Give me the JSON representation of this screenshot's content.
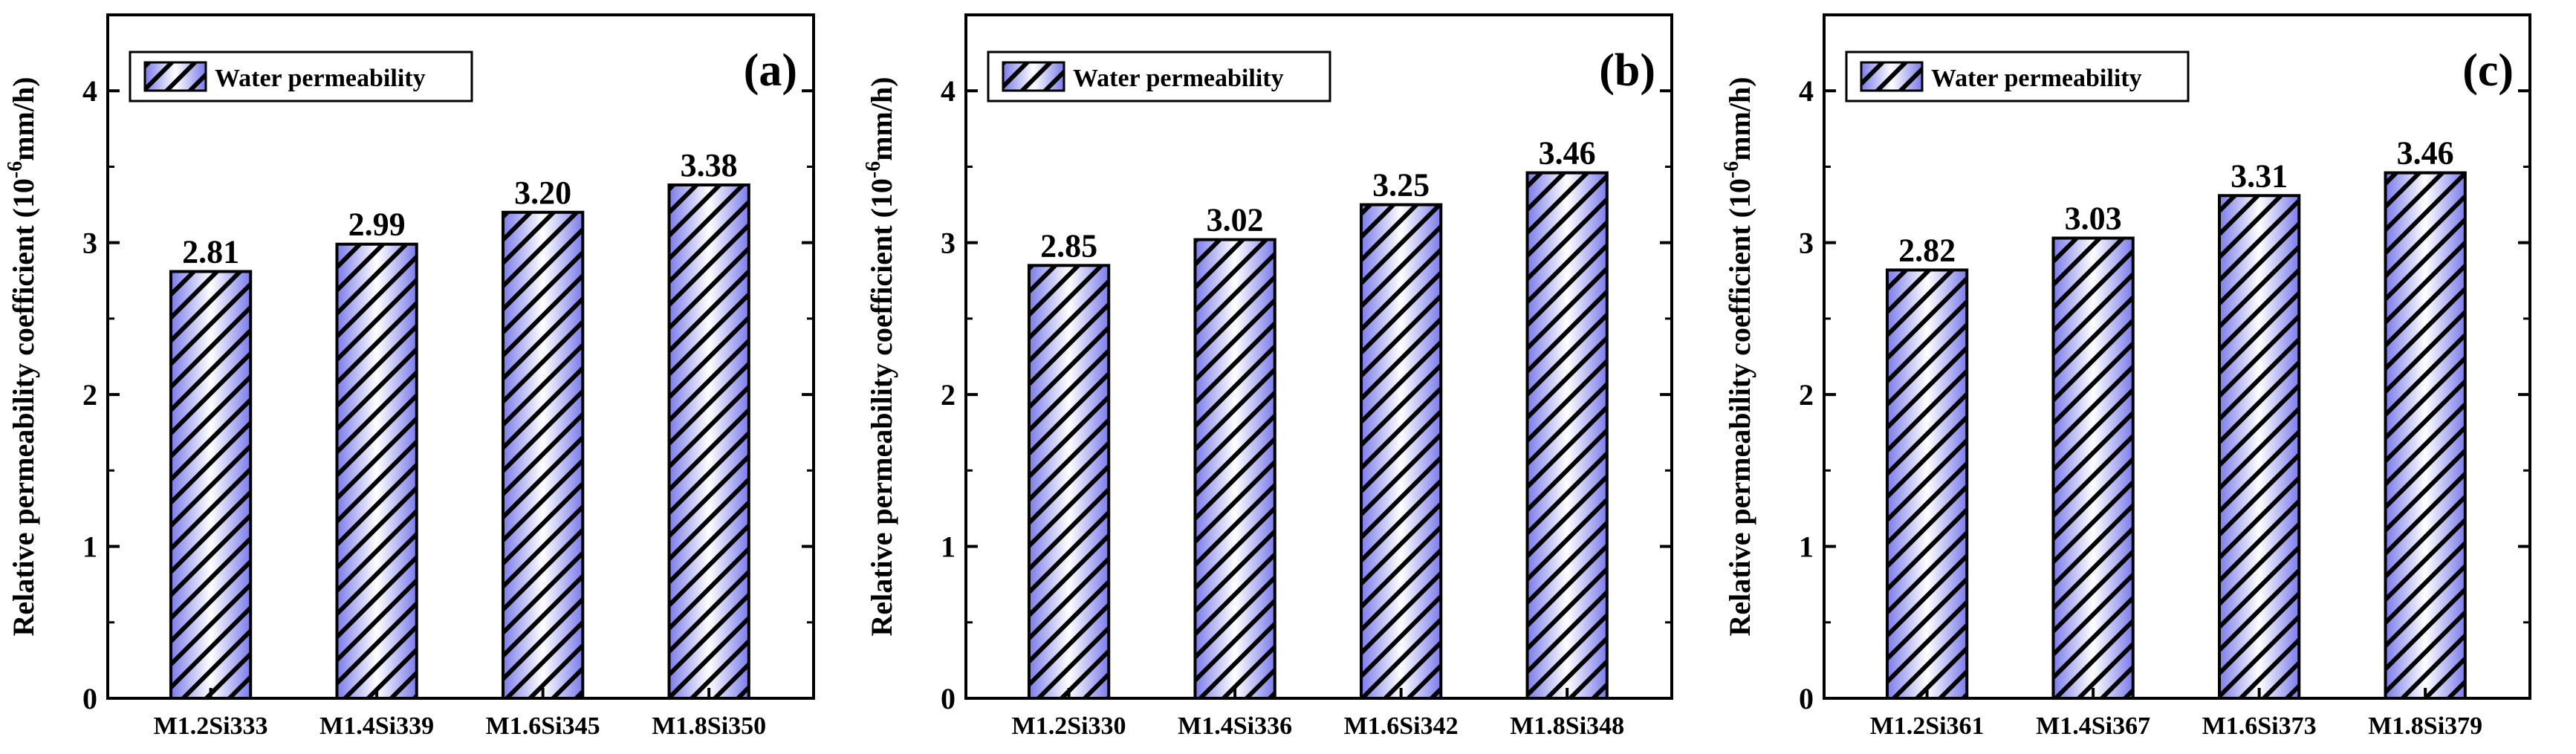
{
  "chart_data": [
    {
      "type": "bar",
      "panel_label": "(a)",
      "legend": "Water permeability",
      "ylabel": {
        "main": "Relative permeability coefficient (10",
        "exp": "-6",
        "unit": "mm/h)"
      },
      "categories": [
        "M1.2Si333",
        "M1.4Si339",
        "M1.6Si345",
        "M1.8Si350"
      ],
      "values": [
        2.81,
        2.99,
        3.2,
        3.38
      ],
      "data_labels": [
        "2.81",
        "2.99",
        "3.20",
        "3.38"
      ],
      "yticks": [
        "0",
        "1",
        "2",
        "3",
        "4"
      ],
      "ylim": [
        0,
        4.5
      ]
    },
    {
      "type": "bar",
      "panel_label": "(b)",
      "legend": "Water permeability",
      "ylabel": {
        "main": "Relative permeability coefficient (10",
        "exp": "-6",
        "unit": "mm/h)"
      },
      "categories": [
        "M1.2Si330",
        "M1.4Si336",
        "M1.6Si342",
        "M1.8Si348"
      ],
      "values": [
        2.85,
        3.02,
        3.25,
        3.46
      ],
      "data_labels": [
        "2.85",
        "3.02",
        "3.25",
        "3.46"
      ],
      "yticks": [
        "0",
        "1",
        "2",
        "3",
        "4"
      ],
      "ylim": [
        0,
        4.5
      ]
    },
    {
      "type": "bar",
      "panel_label": "(c)",
      "legend": "Water permeability",
      "ylabel": {
        "main": "Relative permeability coefficient (10",
        "exp": "-6",
        "unit": "mm/h)"
      },
      "categories": [
        "M1.2Si361",
        "M1.4Si367",
        "M1.6Si373",
        "M1.8Si379"
      ],
      "values": [
        2.82,
        3.03,
        3.31,
        3.46
      ],
      "data_labels": [
        "2.82",
        "3.03",
        "3.31",
        "3.46"
      ],
      "yticks": [
        "0",
        "1",
        "2",
        "3",
        "4"
      ],
      "ylim": [
        0,
        4.5
      ]
    }
  ],
  "colors": {
    "bar_fill": "#7b7bea",
    "bar_highlight": "#ffffff",
    "hatch": "#000000",
    "axis": "#000000"
  }
}
